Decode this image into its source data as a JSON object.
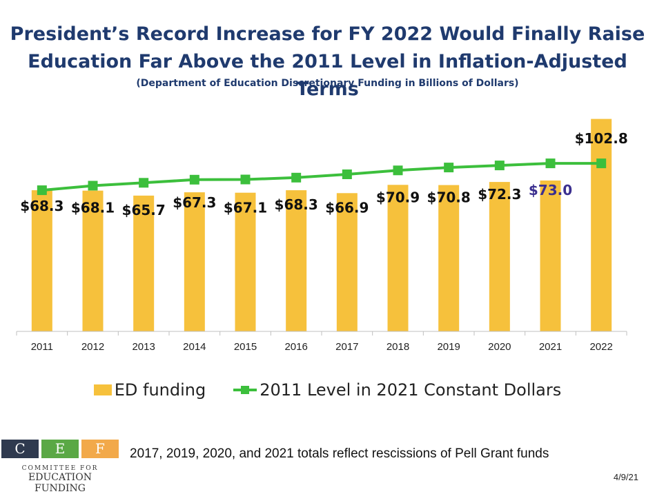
{
  "title_line1": "President’s Record Increase for FY 2022 Would Finally Raise",
  "title_line2": "Education Far Above the 2011 Level in Inflation-Adjusted Terms",
  "subtitle": "(Department of Education Discretionary Funding in Billions of Dollars)",
  "chart_data": {
    "type": "bar",
    "categories": [
      "2011",
      "2012",
      "2013",
      "2014",
      "2015",
      "2016",
      "2017",
      "2018",
      "2019",
      "2020",
      "2021",
      "2022"
    ],
    "series": [
      {
        "name": "ED funding",
        "values": [
          68.3,
          68.1,
          65.7,
          67.3,
          67.1,
          68.3,
          66.9,
          70.9,
          70.8,
          72.3,
          73.0,
          102.8
        ],
        "labels": [
          "$68.3",
          "$68.1",
          "$65.7",
          "$67.3",
          "$67.1",
          "$68.3",
          "$66.9",
          "$70.9",
          "$70.8",
          "$72.3",
          "$73.0",
          "$102.8"
        ],
        "color": "#f6c13c"
      },
      {
        "name": "2011 Level in 2021 Constant Dollars",
        "values": [
          68.3,
          70.5,
          71.9,
          73.4,
          73.5,
          74.4,
          76.0,
          77.9,
          79.3,
          80.3,
          81.3,
          81.3
        ],
        "color": "#3cbf3c"
      }
    ],
    "highlight_label_color": "#3b2f8f",
    "label_color": "#111111",
    "ylim": [
      0,
      110
    ],
    "xlabel": "",
    "ylabel": ""
  },
  "legend": {
    "bar_label": "ED funding",
    "line_label": "2011 Level in 2021 Constant Dollars"
  },
  "logo": {
    "letters": [
      "C",
      "E",
      "F"
    ],
    "line1": "COMMITTEE FOR",
    "line2": "EDUCATION FUNDING"
  },
  "footnote": "2017, 2019, 2020, and 2021 totals reflect rescissions of Pell Grant funds",
  "date": "4/9/21"
}
